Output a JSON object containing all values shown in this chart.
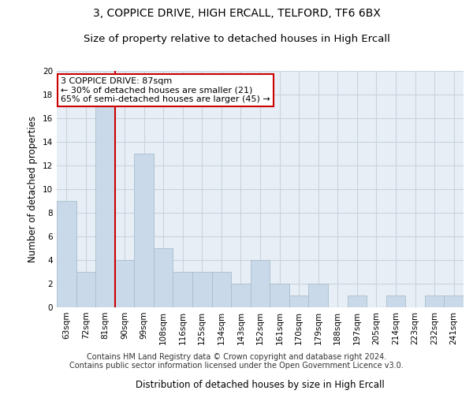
{
  "title": "3, COPPICE DRIVE, HIGH ERCALL, TELFORD, TF6 6BX",
  "subtitle": "Size of property relative to detached houses in High Ercall",
  "xlabel": "Distribution of detached houses by size in High Ercall",
  "ylabel": "Number of detached properties",
  "categories": [
    "63sqm",
    "72sqm",
    "81sqm",
    "90sqm",
    "99sqm",
    "108sqm",
    "116sqm",
    "125sqm",
    "134sqm",
    "143sqm",
    "152sqm",
    "161sqm",
    "170sqm",
    "179sqm",
    "188sqm",
    "197sqm",
    "205sqm",
    "214sqm",
    "223sqm",
    "232sqm",
    "241sqm"
  ],
  "values": [
    9,
    3,
    17,
    4,
    13,
    5,
    3,
    3,
    3,
    2,
    4,
    2,
    1,
    2,
    0,
    1,
    0,
    1,
    0,
    1,
    1
  ],
  "bar_color": "#c9d9ea",
  "bar_edge_color": "#a8becc",
  "red_line_index": 2,
  "red_line_color": "#cc0000",
  "ylim": [
    0,
    20
  ],
  "yticks": [
    0,
    2,
    4,
    6,
    8,
    10,
    12,
    14,
    16,
    18,
    20
  ],
  "annotation_text": "3 COPPICE DRIVE: 87sqm\n← 30% of detached houses are smaller (21)\n65% of semi-detached houses are larger (45) →",
  "annotation_box_color": "#ffffff",
  "annotation_box_edge": "#cc0000",
  "footer_line1": "Contains HM Land Registry data © Crown copyright and database right 2024.",
  "footer_line2": "Contains public sector information licensed under the Open Government Licence v3.0.",
  "background_color": "#ffffff",
  "plot_bg_color": "#e8eef5",
  "grid_color": "#c8d4e0",
  "title_fontsize": 10,
  "subtitle_fontsize": 9.5,
  "axis_label_fontsize": 8.5,
  "tick_fontsize": 7.5,
  "annotation_fontsize": 8,
  "footer_fontsize": 7
}
